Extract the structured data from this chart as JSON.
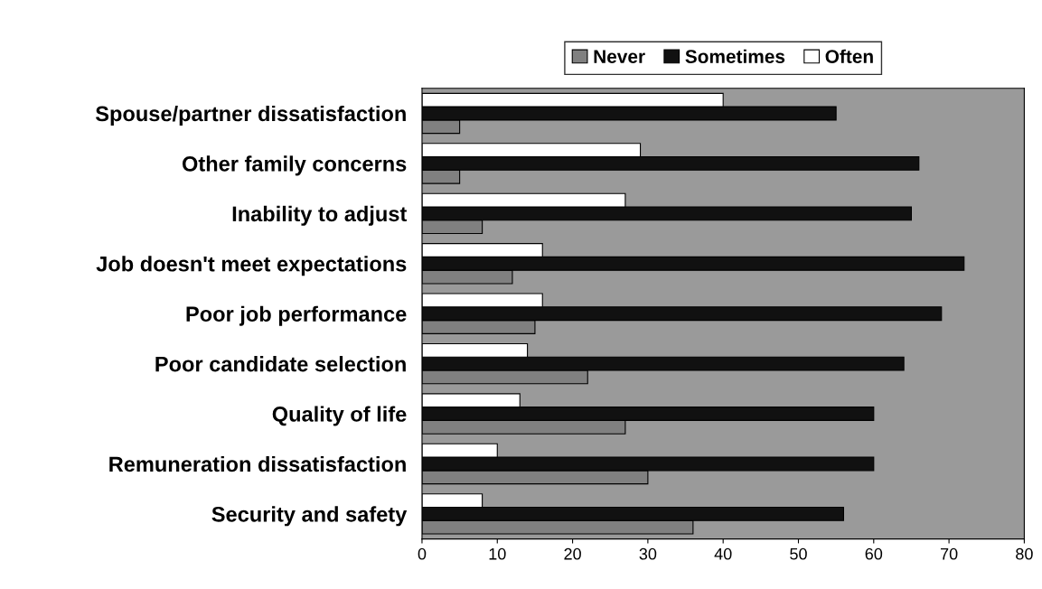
{
  "chart_data": {
    "type": "bar",
    "orientation": "horizontal",
    "categories": [
      "Spouse/partner dissatisfaction",
      "Other family concerns",
      "Inability to adjust",
      "Job doesn't meet expectations",
      "Poor job performance",
      "Poor candidate selection",
      "Quality of life",
      "Remuneration dissatisfaction",
      "Security and safety"
    ],
    "series": [
      {
        "name": "Never",
        "color": "#808080",
        "values": [
          5,
          5,
          8,
          12,
          15,
          22,
          27,
          30,
          36
        ]
      },
      {
        "name": "Sometimes",
        "color": "#111111",
        "values": [
          55,
          66,
          65,
          72,
          69,
          64,
          60,
          60,
          56
        ]
      },
      {
        "name": "Often",
        "color": "#ffffff",
        "values": [
          40,
          29,
          27,
          16,
          16,
          14,
          13,
          10,
          8
        ]
      }
    ],
    "xlim": [
      0,
      80
    ],
    "xticks": [
      0,
      10,
      20,
      30,
      40,
      50,
      60,
      70,
      80
    ],
    "legend": "top",
    "grid": false
  }
}
